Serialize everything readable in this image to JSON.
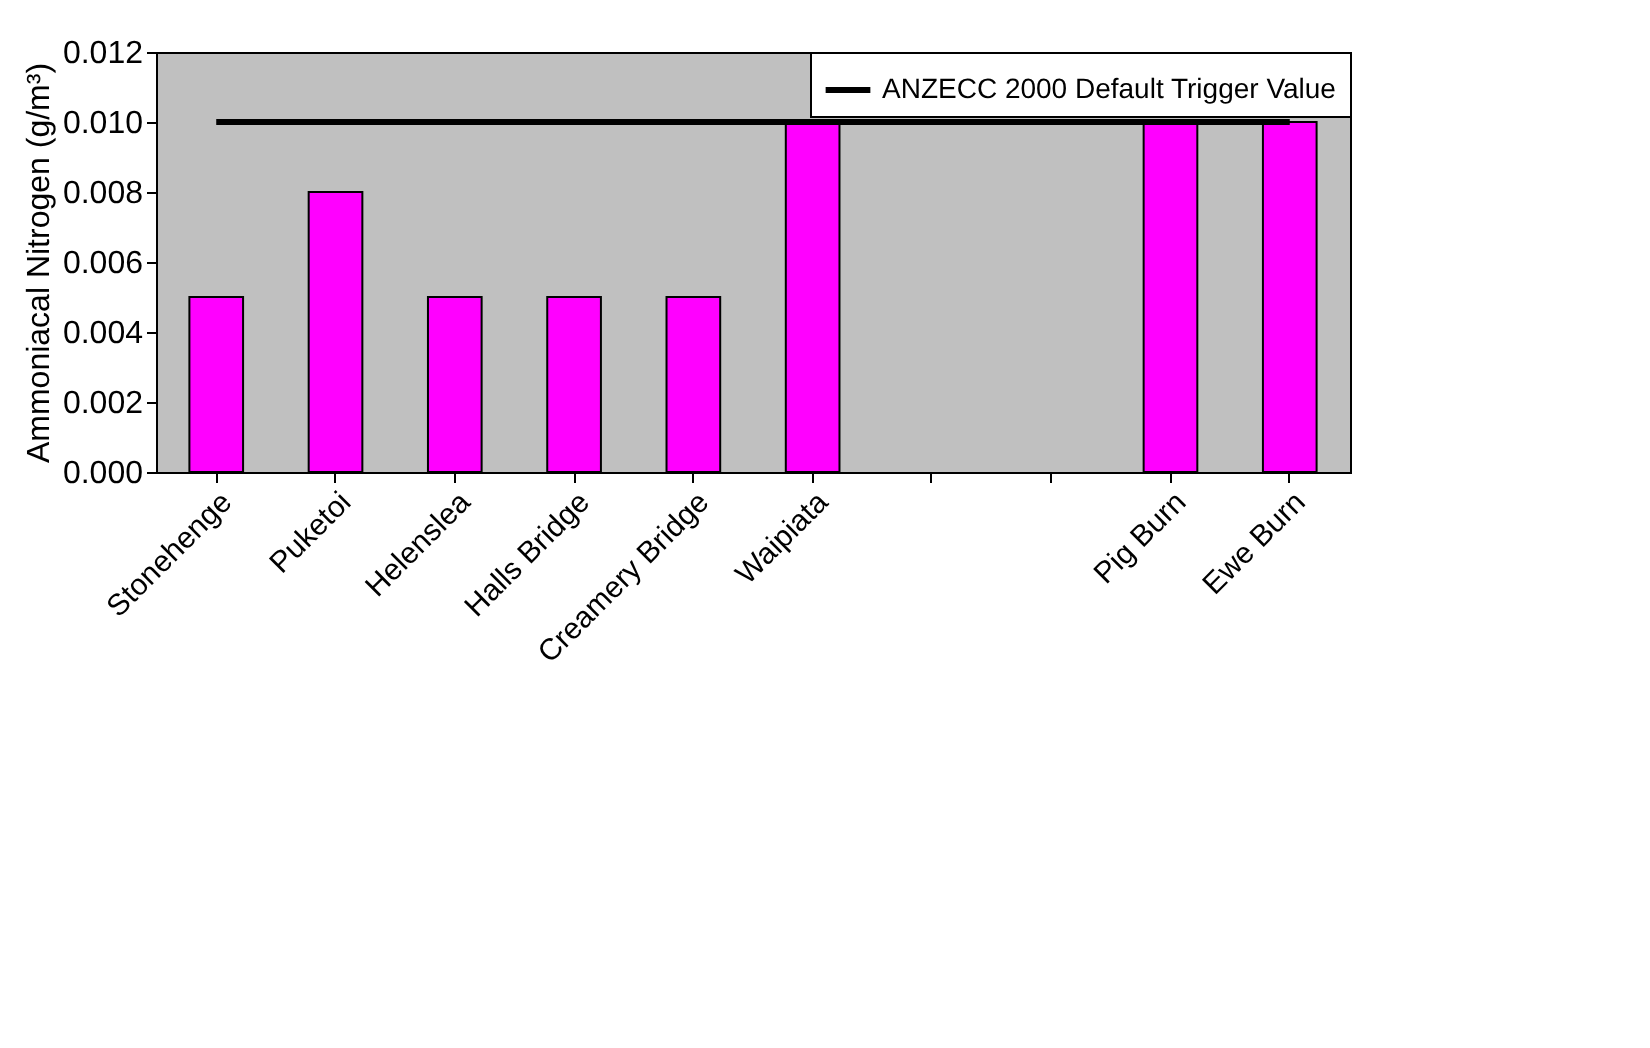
{
  "chart_data": {
    "type": "bar",
    "ylabel": "Ammoniacal Nitrogen (g/m³)",
    "categories": [
      "Stonehenge",
      "Puketoi",
      "Helenslea",
      "Halls Bridge",
      "Creamery Bridge",
      "Waipiata",
      null,
      null,
      "Pig Burn",
      "Ewe Burn"
    ],
    "series": [
      {
        "type": "bar",
        "color": "#ff00ff",
        "values": [
          0.005,
          0.008,
          0.005,
          0.005,
          0.005,
          0.01,
          null,
          null,
          0.01,
          0.01
        ]
      },
      {
        "type": "line",
        "name": "ANZECC 2000 Default Trigger Value",
        "color": "#000000",
        "values": [
          0.01,
          0.01,
          0.01,
          0.01,
          0.01,
          0.01,
          0.01,
          0.01,
          0.01,
          0.01
        ]
      }
    ],
    "ylim": [
      0,
      0.012
    ],
    "yticks": [
      {
        "value": 0,
        "label": "0.000"
      },
      {
        "value": 0.002,
        "label": "0.002"
      },
      {
        "value": 0.004,
        "label": "0.004"
      },
      {
        "value": 0.006,
        "label": "0.006"
      },
      {
        "value": 0.008,
        "label": "0.008"
      },
      {
        "value": 0.01,
        "label": "0.010"
      },
      {
        "value": 0.012,
        "label": "0.012"
      }
    ],
    "grid": false,
    "legend": "top right"
  }
}
